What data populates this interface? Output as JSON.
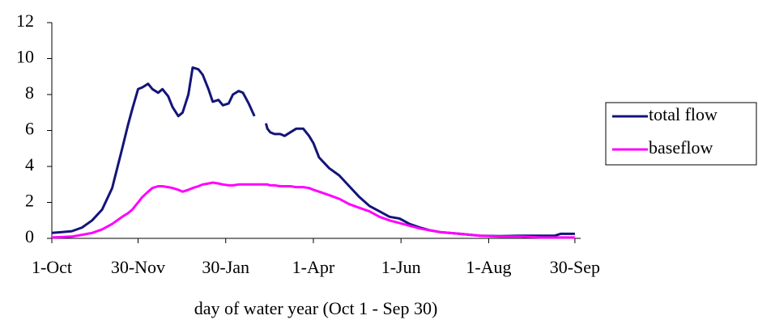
{
  "chart_data": {
    "type": "line",
    "xlabel": "day of water year (Oct 1 - Sep 30)",
    "x": [
      0,
      7,
      14,
      21,
      28,
      35,
      42,
      49,
      53,
      56,
      60,
      63,
      67,
      70,
      74,
      77,
      81,
      84,
      88,
      91,
      95,
      98,
      102,
      105,
      109,
      112,
      116,
      119,
      123,
      126,
      130,
      133,
      137,
      141,
      145,
      149,
      150,
      152,
      155,
      159,
      162,
      166,
      170,
      175,
      179,
      182,
      186,
      193,
      200,
      207,
      214,
      221,
      228,
      235,
      242,
      249,
      256,
      263,
      270,
      284,
      298,
      312,
      326,
      340,
      350,
      354,
      364
    ],
    "series": [
      {
        "name": "total flow",
        "color": "#14147a",
        "values": [
          0.3,
          0.35,
          0.4,
          0.6,
          1.0,
          1.6,
          2.8,
          5.0,
          6.3,
          7.2,
          8.3,
          8.4,
          8.6,
          8.3,
          8.1,
          8.3,
          7.9,
          7.3,
          6.8,
          7.0,
          8.0,
          9.5,
          9.4,
          9.1,
          8.3,
          7.6,
          7.7,
          7.4,
          7.5,
          8.0,
          8.2,
          8.1,
          7.5,
          6.8,
          null,
          6.4,
          6.1,
          5.9,
          5.8,
          5.8,
          5.7,
          5.9,
          6.1,
          6.1,
          5.7,
          5.3,
          4.5,
          3.9,
          3.5,
          2.9,
          2.3,
          1.8,
          1.5,
          1.2,
          1.1,
          0.8,
          0.6,
          0.45,
          0.35,
          0.25,
          0.15,
          0.12,
          0.15,
          0.15,
          0.15,
          0.25,
          0.25
        ]
      },
      {
        "name": "baseflow",
        "color": "#ff00ff",
        "values": [
          0.05,
          0.07,
          0.1,
          0.2,
          0.3,
          0.5,
          0.8,
          1.2,
          1.4,
          1.6,
          2.0,
          2.3,
          2.6,
          2.8,
          2.9,
          2.9,
          2.85,
          2.8,
          2.7,
          2.6,
          2.7,
          2.8,
          2.9,
          3.0,
          3.05,
          3.1,
          3.05,
          3.0,
          2.95,
          2.95,
          3.0,
          3.0,
          3.0,
          3.0,
          3.0,
          3.0,
          3.0,
          2.95,
          2.95,
          2.9,
          2.9,
          2.9,
          2.85,
          2.85,
          2.8,
          2.7,
          2.6,
          2.4,
          2.2,
          1.9,
          1.7,
          1.5,
          1.2,
          1.0,
          0.85,
          0.7,
          0.55,
          0.45,
          0.35,
          0.25,
          0.15,
          0.1,
          0.1,
          0.05,
          0.05,
          0.05,
          0.05
        ]
      }
    ],
    "xlim": [
      0,
      368
    ],
    "xticks": [
      {
        "value": 0,
        "label": "1-Oct"
      },
      {
        "value": 60,
        "label": "30-Nov"
      },
      {
        "value": 121,
        "label": "30-Jan"
      },
      {
        "value": 182,
        "label": "1-Apr"
      },
      {
        "value": 243,
        "label": "1-Jun"
      },
      {
        "value": 304,
        "label": "1-Aug"
      },
      {
        "value": 364,
        "label": "30-Sep"
      }
    ],
    "ylim": [
      0,
      12
    ],
    "yticks": [
      0,
      2,
      4,
      6,
      8,
      10,
      12
    ],
    "grid": false,
    "legend": "right"
  }
}
